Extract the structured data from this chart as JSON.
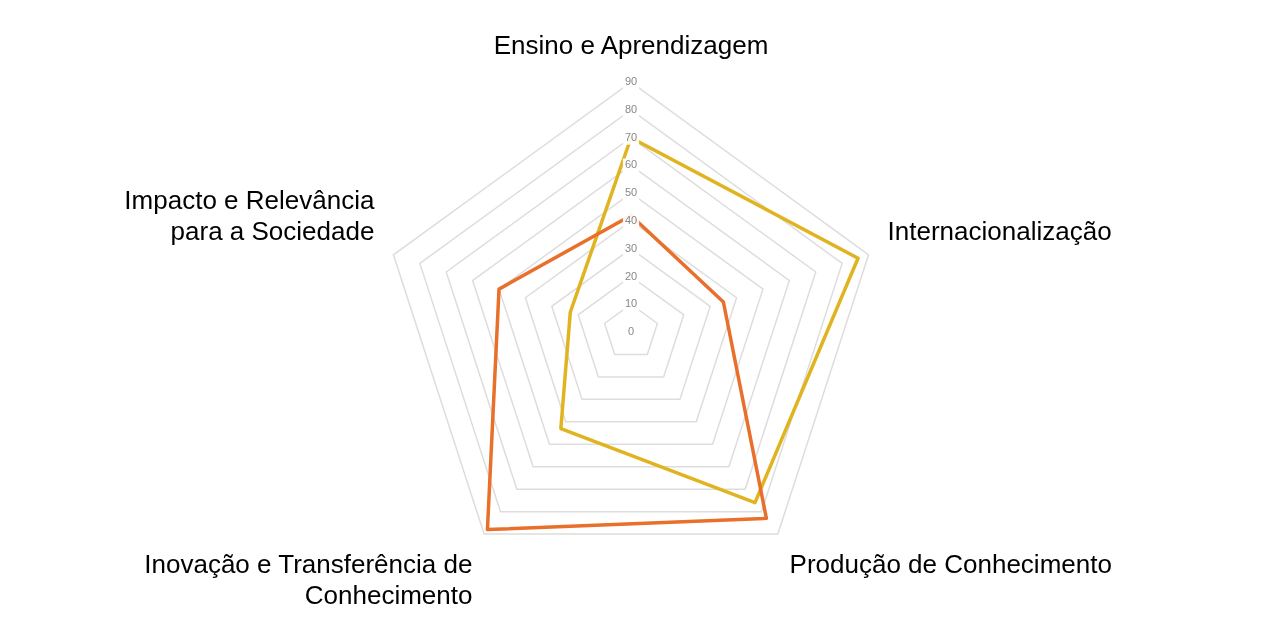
{
  "chart_data": {
    "type": "radar",
    "categories": [
      "Ensino e Aprendizagem",
      "Internacionalização",
      "Produção de Conhecimento",
      "Inovação e Transferência de\nConhecimento",
      "Impacto e Relevância\npara a Sociedade"
    ],
    "series": [
      {
        "color": "#e8702a",
        "values": [
          42,
          35,
          83,
          88,
          50
        ]
      },
      {
        "color": "#e0b420",
        "values": [
          70,
          86,
          76,
          43,
          23
        ]
      }
    ],
    "ylim": [
      0,
      90
    ],
    "yticks": [
      0,
      10,
      20,
      30,
      40,
      50,
      60,
      70,
      80,
      90
    ],
    "grid": true,
    "legend": false
  }
}
